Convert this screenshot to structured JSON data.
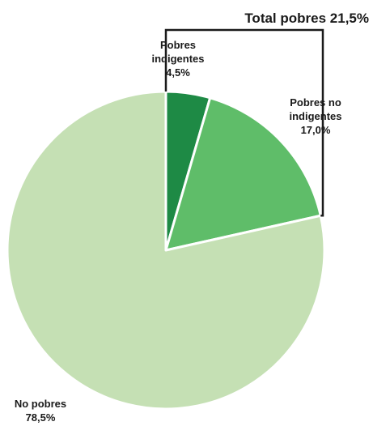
{
  "chart_data": {
    "type": "pie",
    "slices": [
      {
        "label_lines": [
          "Pobres",
          "indigentes"
        ],
        "value_label": "4,5%",
        "value": 4.5,
        "color": "#1e8a45"
      },
      {
        "label_lines": [
          "Pobres no",
          "indigentes"
        ],
        "value_label": "17,0%",
        "value": 17.0,
        "color": "#5fbd69"
      },
      {
        "label_lines": [
          "No pobres"
        ],
        "value_label": "78,5%",
        "value": 78.5,
        "color": "#c5e0b4"
      }
    ],
    "start": "12 o'clock",
    "direction": "clockwise",
    "slice_border_color": "#ffffff",
    "bracket": {
      "label": "Total pobres 21,5%",
      "value": 21.5,
      "line_color": "#1a1a1a"
    }
  }
}
